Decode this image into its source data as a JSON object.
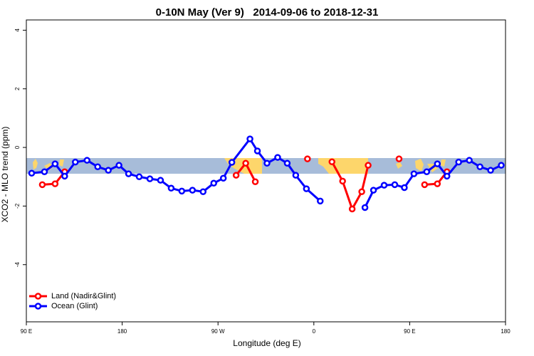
{
  "chart_data": {
    "type": "line",
    "title": "0-10N May (Ver 9)   2014-09-06 to 2018-12-31",
    "xlabel": "Longitude (deg E)",
    "ylabel": "XCO2 - MLO trend (ppm)",
    "xlim": [
      90,
      540
    ],
    "ylim": [
      -5.95,
      4.35
    ],
    "xticks": [
      {
        "value": 90,
        "label": "90 E"
      },
      {
        "value": 180,
        "label": "180"
      },
      {
        "value": 270,
        "label": "90 W"
      },
      {
        "value": 360,
        "label": "0"
      },
      {
        "value": 450,
        "label": "90 E"
      },
      {
        "value": 540,
        "label": "180"
      }
    ],
    "yticks": [
      -4,
      -2,
      0,
      2,
      4
    ],
    "legend": "bottom-left",
    "series": [
      {
        "name": "Land (Nadir&Glint)",
        "color": "#ff0000",
        "x": [
          105,
          117,
          126,
          null,
          287,
          296,
          305,
          null,
          354,
          null,
          377,
          387,
          396,
          405,
          411,
          null,
          440,
          null,
          464,
          476,
          485
        ],
        "values": [
          -1.27,
          -1.24,
          -0.83,
          null,
          -0.95,
          -0.54,
          -1.17,
          null,
          -0.39,
          null,
          -0.49,
          -1.15,
          -2.1,
          -1.51,
          -0.61,
          null,
          -0.39,
          null,
          -1.27,
          -1.24,
          -0.83
        ]
      },
      {
        "name": "Ocean (Glint)",
        "color": "#0000ff",
        "x": [
          95,
          107,
          117,
          126,
          136,
          147,
          157,
          167,
          177,
          186,
          196,
          206,
          216,
          226,
          236,
          246,
          256,
          266,
          275,
          283,
          300,
          307,
          316,
          326,
          335,
          343,
          353,
          366,
          null,
          408,
          416,
          426,
          436,
          445,
          454,
          466,
          476,
          485,
          496,
          506,
          516,
          526,
          536
        ],
        "values": [
          -0.88,
          -0.83,
          -0.56,
          -0.98,
          -0.5,
          -0.44,
          -0.66,
          -0.78,
          -0.61,
          -0.9,
          -1.0,
          -1.07,
          -1.12,
          -1.39,
          -1.49,
          -1.46,
          -1.51,
          -1.22,
          -1.05,
          -0.51,
          0.29,
          -0.12,
          -0.54,
          -0.34,
          -0.54,
          -0.95,
          -1.41,
          -1.83,
          null,
          -2.05,
          -1.46,
          -1.29,
          -1.27,
          -1.37,
          -0.9,
          -0.83,
          -0.56,
          -0.98,
          -0.5,
          -0.44,
          -0.66,
          -0.78,
          -0.61
        ]
      }
    ]
  }
}
